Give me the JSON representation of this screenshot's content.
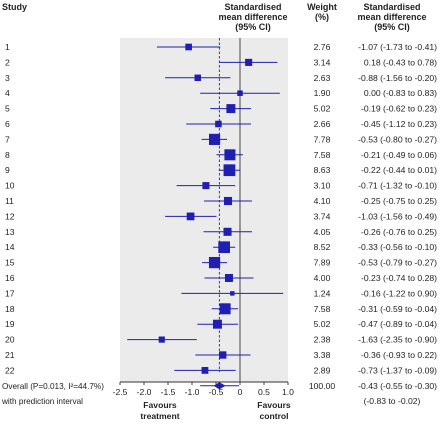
{
  "headers": {
    "study": "Study",
    "smd_line1": "Standardised",
    "smd_line2": "mean difference",
    "smd_line3": "(95% CI)",
    "weight_line1": "Weight",
    "weight_line2": "(%)",
    "ci_line1": "Standardised",
    "ci_line2": "mean difference",
    "ci_line3": "(95% CI)"
  },
  "footer": {
    "favours_left_1": "Favours",
    "favours_left_2": "treatment",
    "favours_right_1": "Favours",
    "favours_right_2": "control"
  },
  "colors": {
    "marker": "#1f1fb4",
    "shade": "#ebebeb",
    "axis": "#333333"
  },
  "chart_data": {
    "type": "forest",
    "xlim": [
      -2.5,
      1.0
    ],
    "x_ticks": [
      "-2.5",
      "-2.0",
      "-1.5",
      "-1.0",
      "-0.5",
      "0",
      "0.5",
      "1.0"
    ],
    "x_tick_values": [
      -2.5,
      -2.0,
      -1.5,
      -1.0,
      -0.5,
      0,
      0.5,
      1.0
    ],
    "null_line": 0,
    "studies": [
      {
        "label": "1",
        "est": -1.07,
        "lo": -1.73,
        "hi": -0.41,
        "weight": "2.76",
        "ci_text": "-1.07 (-1.73 to -0.41)"
      },
      {
        "label": "2",
        "est": 0.18,
        "lo": -0.43,
        "hi": 0.78,
        "weight": "3.14",
        "ci_text": "0.18 (-0.43 to 0.78)"
      },
      {
        "label": "3",
        "est": -0.88,
        "lo": -1.56,
        "hi": -0.2,
        "weight": "2.63",
        "ci_text": "-0.88 (-1.56 to -0.20)"
      },
      {
        "label": "4",
        "est": 0.0,
        "lo": -0.83,
        "hi": 0.83,
        "weight": "1.90",
        "ci_text": "0.00 (-0.83 to 0.83)"
      },
      {
        "label": "5",
        "est": -0.19,
        "lo": -0.62,
        "hi": 0.23,
        "weight": "5.02",
        "ci_text": "-0.19 (-0.62 to 0.23)"
      },
      {
        "label": "6",
        "est": -0.45,
        "lo": -1.12,
        "hi": 0.23,
        "weight": "2.66",
        "ci_text": "-0.45 (-1.12 to 0.23)"
      },
      {
        "label": "7",
        "est": -0.53,
        "lo": -0.8,
        "hi": -0.27,
        "weight": "7.78",
        "ci_text": "-0.53 (-0.80 to -0.27)"
      },
      {
        "label": "8",
        "est": -0.21,
        "lo": -0.49,
        "hi": 0.06,
        "weight": "7.58",
        "ci_text": "-0.21 (-0.49 to 0.06)"
      },
      {
        "label": "9",
        "est": -0.22,
        "lo": -0.44,
        "hi": 0.01,
        "weight": "8.63",
        "ci_text": "-0.22 (-0.44 to 0.01)"
      },
      {
        "label": "10",
        "est": -0.71,
        "lo": -1.32,
        "hi": -0.1,
        "weight": "3.10",
        "ci_text": "-0.71 (-1.32 to -0.10)"
      },
      {
        "label": "11",
        "est": -0.25,
        "lo": -0.75,
        "hi": 0.25,
        "weight": "4.10",
        "ci_text": "-0.25 (-0.75 to 0.25)"
      },
      {
        "label": "12",
        "est": -1.03,
        "lo": -1.56,
        "hi": -0.49,
        "weight": "3.74",
        "ci_text": "-1.03 (-1.56 to -0.49)"
      },
      {
        "label": "13",
        "est": -0.26,
        "lo": -0.76,
        "hi": 0.25,
        "weight": "4.05",
        "ci_text": "-0.26 (-0.76 to 0.25)"
      },
      {
        "label": "14",
        "est": -0.33,
        "lo": -0.56,
        "hi": -0.1,
        "weight": "8.52",
        "ci_text": "-0.33 (-0.56 to -0.10)"
      },
      {
        "label": "15",
        "est": -0.53,
        "lo": -0.79,
        "hi": -0.27,
        "weight": "7.89",
        "ci_text": "-0.53 (-0.79 to -0.27)"
      },
      {
        "label": "16",
        "est": -0.23,
        "lo": -0.74,
        "hi": 0.28,
        "weight": "4.00",
        "ci_text": "-0.23 (-0.74 to 0.28)"
      },
      {
        "label": "17",
        "est": -0.16,
        "lo": -1.22,
        "hi": 0.9,
        "weight": "1.24",
        "ci_text": "-0.16 (-1.22 to 0.90)"
      },
      {
        "label": "18",
        "est": -0.31,
        "lo": -0.59,
        "hi": -0.04,
        "weight": "7.58",
        "ci_text": "-0.31 (-0.59 to -0.04)"
      },
      {
        "label": "19",
        "est": -0.47,
        "lo": -0.89,
        "hi": -0.04,
        "weight": "5.02",
        "ci_text": "-0.47 (-0.89 to -0.04)"
      },
      {
        "label": "20",
        "est": -1.63,
        "lo": -2.35,
        "hi": -0.9,
        "weight": "2.38",
        "ci_text": "-1.63 (-2.35 to -0.90)"
      },
      {
        "label": "21",
        "est": -0.36,
        "lo": -0.93,
        "hi": 0.22,
        "weight": "3.38",
        "ci_text": "-0.36 (-0.93 to 0.22)"
      },
      {
        "label": "22",
        "est": -0.73,
        "lo": -1.37,
        "hi": -0.09,
        "weight": "2.89",
        "ci_text": "-0.73 (-1.37 to -0.09)"
      }
    ],
    "overall": {
      "label": "Overall (P=0.013, I²=44.7%)",
      "est": -0.43,
      "lo": -0.55,
      "hi": -0.3,
      "weight": "100.00",
      "ci_text": "-0.43 (-0.55 to -0.30)"
    },
    "prediction": {
      "label": "with prediction interval",
      "lo": -0.83,
      "hi": -0.02,
      "ci_text": "(-0.83 to -0.02)"
    }
  }
}
